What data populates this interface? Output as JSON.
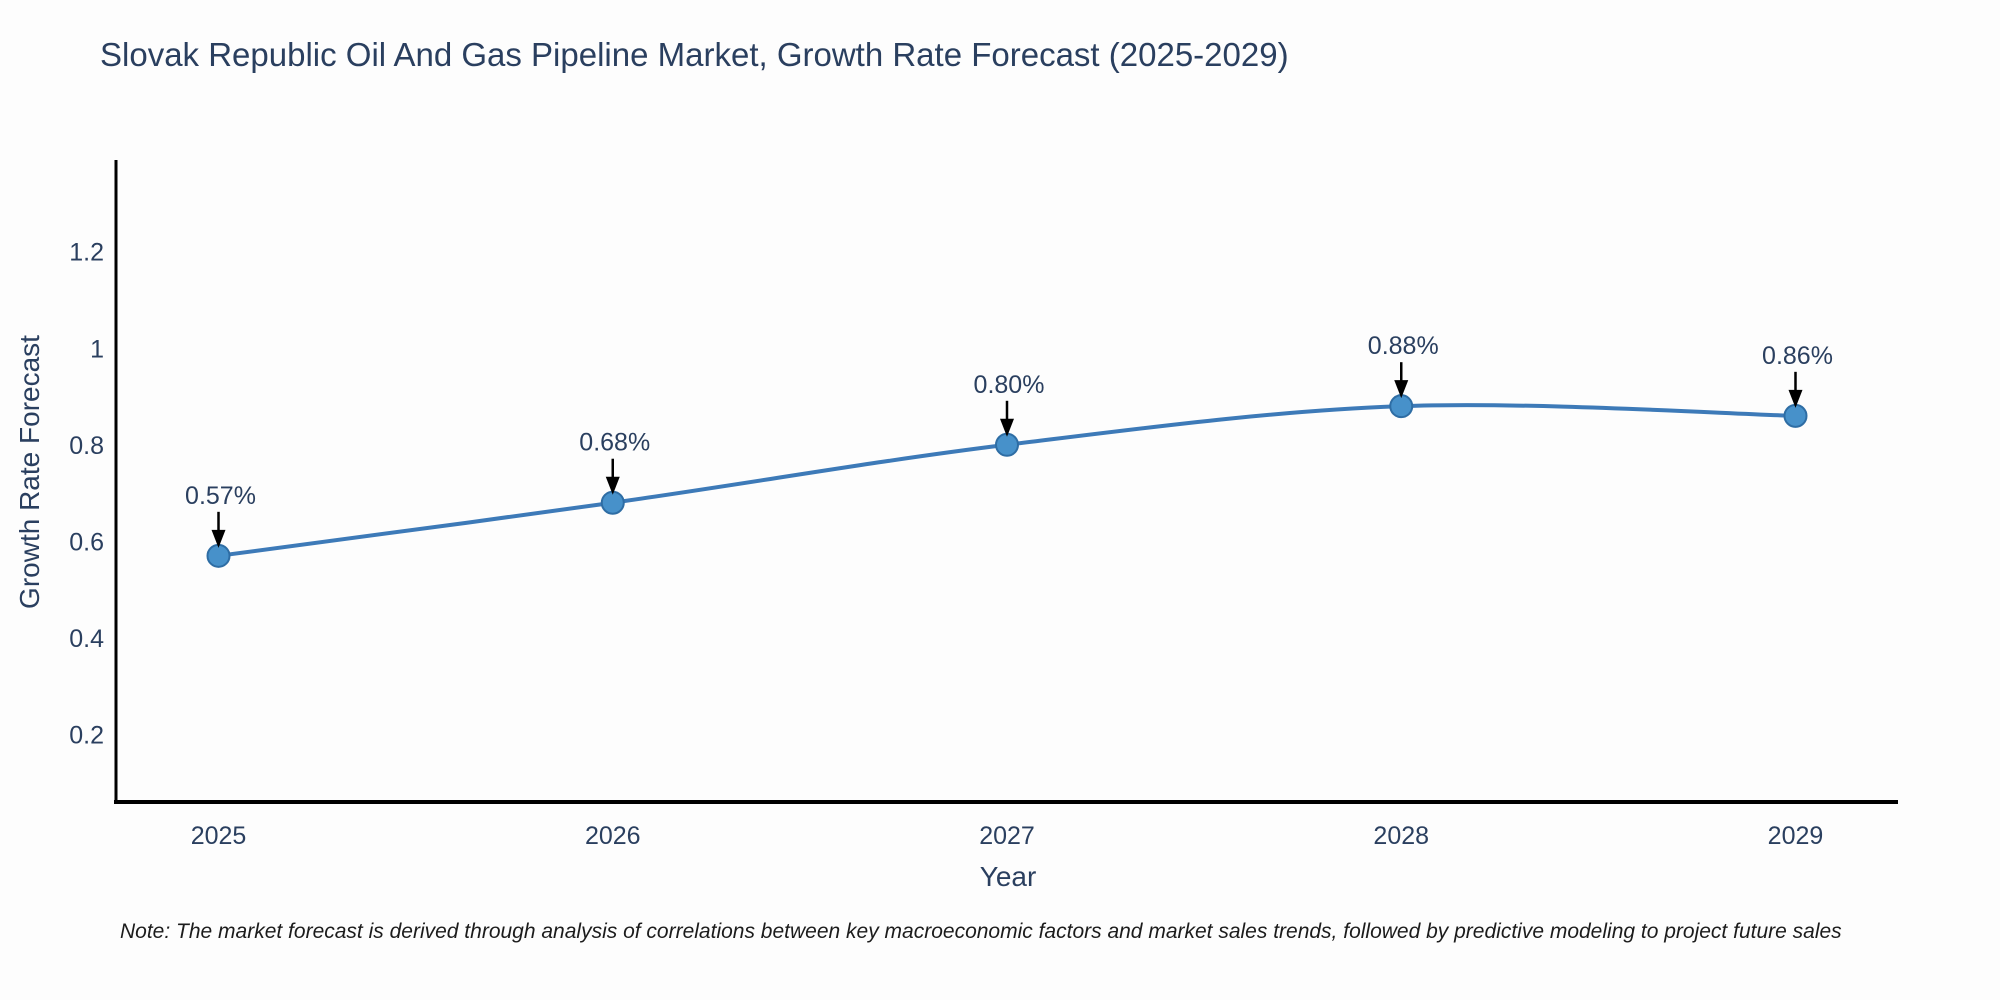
{
  "chart_data": {
    "type": "line",
    "title": "Slovak Republic Oil And Gas Pipeline Market, Growth Rate Forecast (2025-2029)",
    "xlabel": "Year",
    "ylabel": "Growth Rate Forecast",
    "x": [
      2025,
      2026,
      2027,
      2028,
      2029
    ],
    "values": [
      0.57,
      0.68,
      0.8,
      0.88,
      0.86
    ],
    "point_labels": [
      "0.57%",
      "0.68%",
      "0.80%",
      "0.88%",
      "0.86%"
    ],
    "x_tick_labels": [
      "2025",
      "2026",
      "2027",
      "2028",
      "2029"
    ],
    "y_ticks": [
      0.2,
      0.4,
      0.6,
      0.8,
      1,
      1.2
    ],
    "y_tick_labels": [
      "0.2",
      "0.4",
      "0.6",
      "0.8",
      "1",
      "1.2"
    ],
    "xlim": [
      2024.74,
      2029.26
    ],
    "ylim": [
      0.06,
      1.39
    ],
    "grid": false,
    "legend": "none",
    "line_shape": "spline",
    "colors": {
      "line": "#3d7ab8",
      "marker_fill": "#4791ca",
      "marker_stroke": "#2e6da4",
      "axis": "#000000",
      "text": "#2a3f5f",
      "annotation_arrow": "#000000",
      "background": "#fdfdfd"
    },
    "note": "Note: The market forecast is derived through analysis of correlations between key macroeconomic factors and market sales trends, followed by predictive modeling to project future sales"
  }
}
